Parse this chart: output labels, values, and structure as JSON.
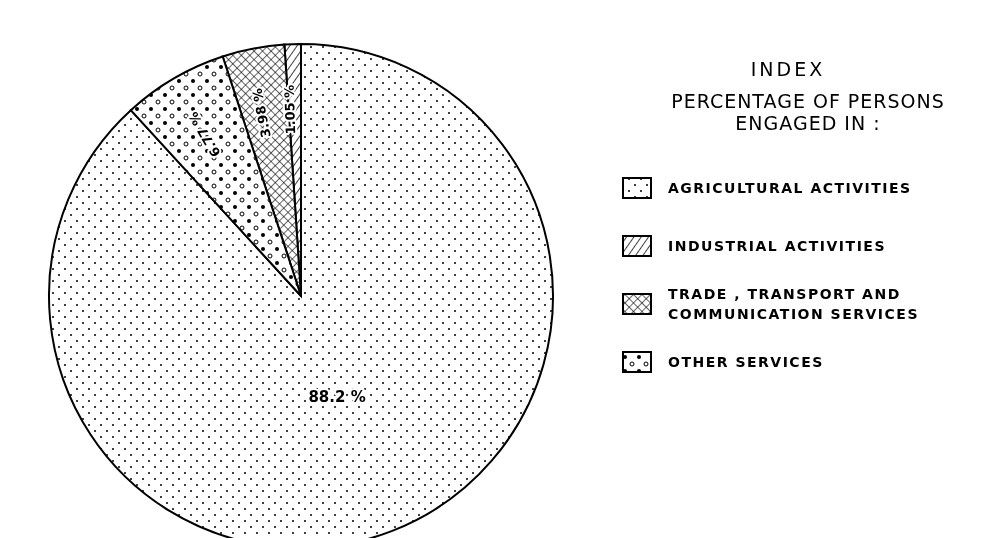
{
  "chart_data": {
    "type": "pie",
    "title": "INDEX",
    "legend_title": "PERCENTAGE OF PERSONS ENGAGED IN :",
    "categories": [
      "AGRICULTURAL ACTIVITIES",
      "INDUSTRIAL ACTIVITIES",
      "TRADE , TRANSPORT AND COMMUNICATION SERVICES",
      "OTHER SERVICES"
    ],
    "values": [
      88.2,
      1.05,
      3.98,
      6.77
    ],
    "value_labels": [
      "88.2 %",
      "1.05 %",
      "3.98 %",
      "6.77 %"
    ],
    "legend": "right"
  }
}
